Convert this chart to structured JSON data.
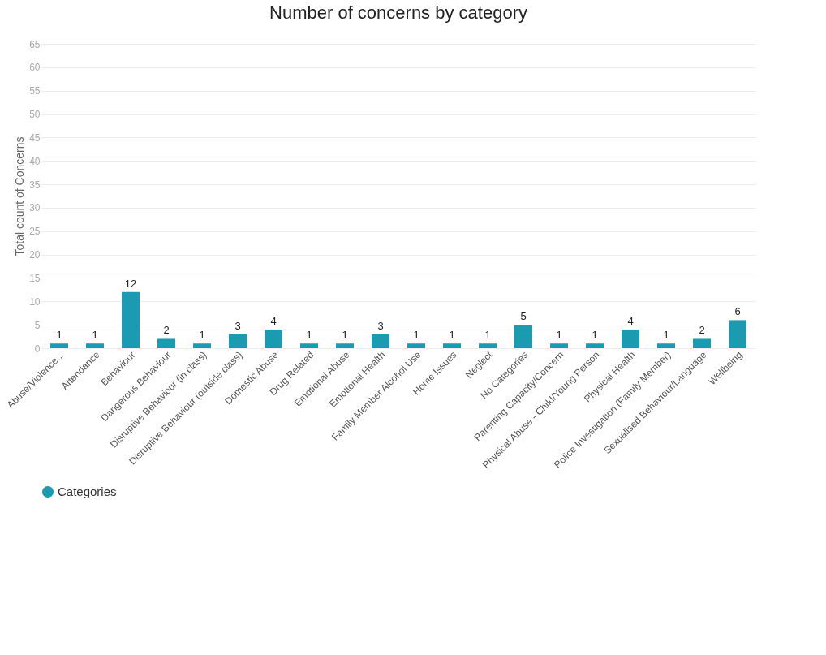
{
  "chart_data": {
    "type": "bar",
    "title": "Number of concerns by category",
    "ylabel": "Total count of Concerns",
    "categories": [
      "Abuse/Violence...",
      "Attendance",
      "Behaviour",
      "Dangerous Behaviour",
      "Disruptive Behaviour (in class)",
      "Disruptive Behaviour (outside class)",
      "Domestic Abuse",
      "Drug Related",
      "Emotional Abuse",
      "Emotional Health",
      "Family Member Alcohol Use",
      "Home Issues",
      "Neglect",
      "No Categories",
      "Parenting Capacity/Concern",
      "Physical Abuse - Child/Young Person",
      "Physical Health",
      "Police Investigation (Family Member)",
      "Sexualised Behaviour/Language",
      "Wellbeing"
    ],
    "series": [
      {
        "name": "Categories",
        "color": "#1a9bb0",
        "values": [
          1,
          1,
          12,
          2,
          1,
          3,
          4,
          1,
          1,
          3,
          1,
          1,
          1,
          5,
          1,
          1,
          4,
          1,
          2,
          6
        ]
      }
    ],
    "ylim": [
      0,
      65
    ],
    "yticks": [
      0,
      5,
      10,
      15,
      20,
      25,
      30,
      35,
      40,
      45,
      50,
      55,
      60,
      65
    ],
    "grid": "y",
    "legend": "bottom",
    "data_labels": true
  }
}
